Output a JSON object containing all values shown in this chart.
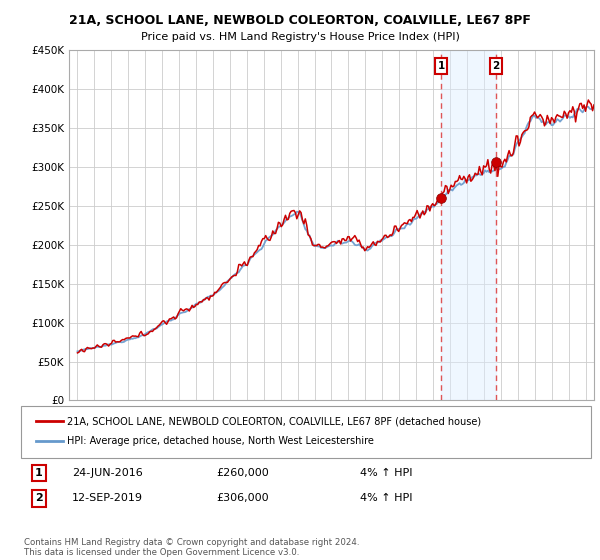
{
  "title": "21A, SCHOOL LANE, NEWBOLD COLEORTON, COALVILLE, LE67 8PF",
  "subtitle": "Price paid vs. HM Land Registry's House Price Index (HPI)",
  "ylim": [
    0,
    450000
  ],
  "yticks": [
    0,
    50000,
    100000,
    150000,
    200000,
    250000,
    300000,
    350000,
    400000,
    450000
  ],
  "xlim_start": 1994.5,
  "xlim_end": 2025.5,
  "sale1_date": 2016.47,
  "sale1_price": 260000,
  "sale1_label": "1",
  "sale2_date": 2019.7,
  "sale2_price": 306000,
  "sale2_label": "2",
  "red_line_color": "#cc0000",
  "blue_line_color": "#6699cc",
  "blue_fill_color": "#ddeeff",
  "dashed_line_color": "#dd4444",
  "legend_line1": "21A, SCHOOL LANE, NEWBOLD COLEORTON, COALVILLE, LE67 8PF (detached house)",
  "legend_line2": "HPI: Average price, detached house, North West Leicestershire",
  "annotation1_date": "24-JUN-2016",
  "annotation1_price": "£260,000",
  "annotation1_pct": "4% ↑ HPI",
  "annotation2_date": "12-SEP-2019",
  "annotation2_price": "£306,000",
  "annotation2_pct": "4% ↑ HPI",
  "footer": "Contains HM Land Registry data © Crown copyright and database right 2024.\nThis data is licensed under the Open Government Licence v3.0.",
  "background_color": "#ffffff",
  "plot_bg_color": "#ffffff"
}
